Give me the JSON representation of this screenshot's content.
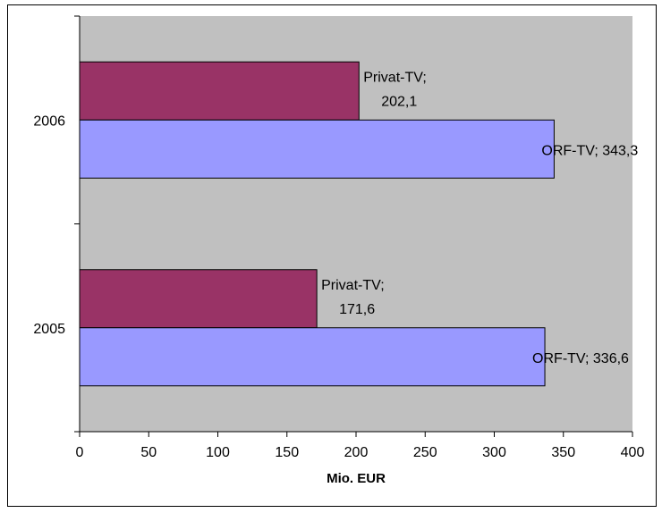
{
  "chart_data": {
    "type": "bar",
    "orientation": "horizontal",
    "categories": [
      "2005",
      "2006"
    ],
    "series": [
      {
        "name": "Privat-TV",
        "values": [
          171.6,
          202.1
        ],
        "labels": [
          [
            "Privat-TV;",
            "171,6"
          ],
          [
            "Privat-TV;",
            "202,1"
          ]
        ],
        "color": "#993366"
      },
      {
        "name": "ORF-TV",
        "values": [
          336.6,
          343.3
        ],
        "labels": [
          [
            "ORF-TV; 336,6"
          ],
          [
            "ORF-TV; 343,3"
          ]
        ],
        "color": "#9999ff"
      }
    ],
    "xlabel": "Mio. EUR",
    "ylabel": "",
    "xlim": [
      0,
      400
    ],
    "xticks": [
      0,
      50,
      100,
      150,
      200,
      250,
      300,
      350,
      400
    ],
    "plot_background": "#c0c0c0",
    "grid": false,
    "legend": "none"
  }
}
